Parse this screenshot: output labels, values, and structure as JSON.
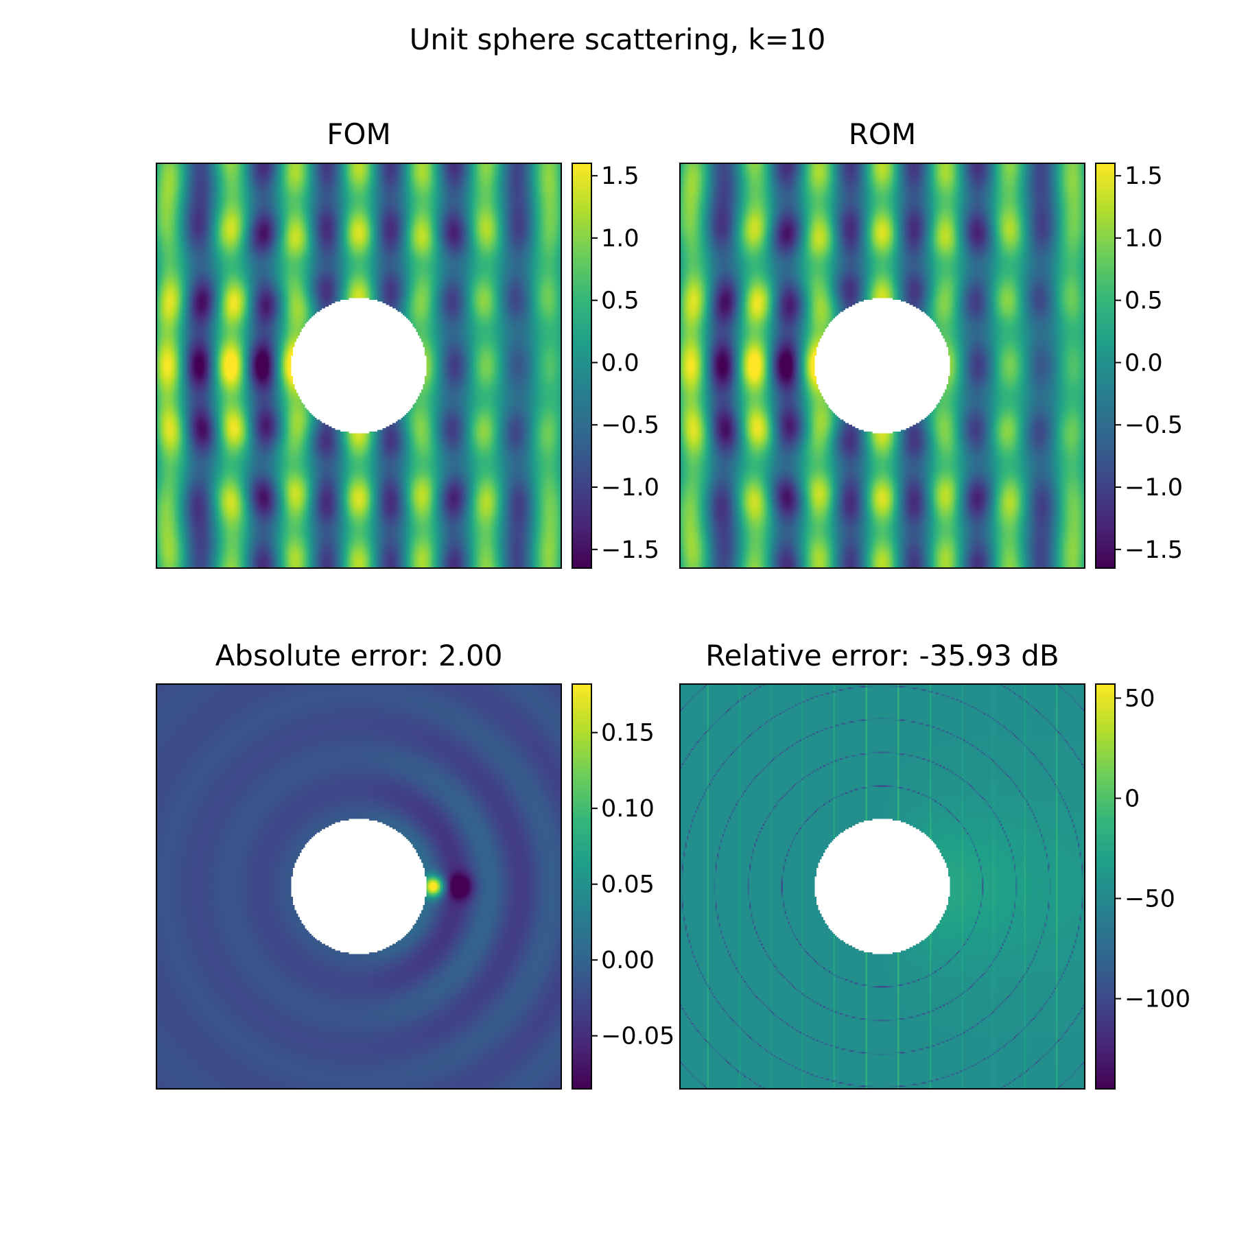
{
  "figure": {
    "title": "Unit sphere scattering, k=10"
  },
  "colormap": "viridis",
  "colormap_stops": [
    "#440154",
    "#482878",
    "#3e4989",
    "#31688e",
    "#26828e",
    "#1f9e89",
    "#35b779",
    "#6ece58",
    "#b5de2b",
    "#fde725"
  ],
  "chart_data": [
    {
      "type": "heatmap",
      "title": "FOM",
      "field": "scattered wave field, plane wave from left, circular obstacle at center",
      "colorbar": {
        "vmin": -1.65,
        "vmax": 1.6,
        "ticks": [
          1.5,
          1.0,
          0.5,
          0.0,
          -0.5,
          -1.0,
          -1.5
        ],
        "tick_labels": [
          "1.5",
          "1.0",
          "0.5",
          "0.0",
          "−0.5",
          "−1.0",
          "−1.5"
        ]
      },
      "xticks": [],
      "yticks": []
    },
    {
      "type": "heatmap",
      "title": "ROM",
      "field": "reduced order model of same scattered wave field",
      "colorbar": {
        "vmin": -1.65,
        "vmax": 1.6,
        "ticks": [
          1.5,
          1.0,
          0.5,
          0.0,
          -0.5,
          -1.0,
          -1.5
        ],
        "tick_labels": [
          "1.5",
          "1.0",
          "0.5",
          "0.0",
          "−0.5",
          "−1.0",
          "−1.5"
        ]
      },
      "xticks": [],
      "yticks": []
    },
    {
      "type": "heatmap",
      "title": "Absolute error: 2.00",
      "field": "difference FOM-ROM, concentrated in shadow region right of obstacle",
      "colorbar": {
        "vmin": -0.085,
        "vmax": 0.182,
        "ticks": [
          0.15,
          0.1,
          0.05,
          0.0,
          -0.05
        ],
        "tick_labels": [
          "0.15",
          "0.10",
          "0.05",
          "0.00",
          "−0.05"
        ]
      },
      "xticks": [],
      "yticks": []
    },
    {
      "type": "heatmap",
      "title": "Relative error: -35.93 dB",
      "field": "relative error in dB with nodal lines",
      "colorbar": {
        "vmin": -145,
        "vmax": 57,
        "ticks": [
          50,
          0,
          -50,
          -100
        ],
        "tick_labels": [
          "50",
          "0",
          "−50",
          "−100"
        ]
      },
      "xticks": [],
      "yticks": []
    }
  ]
}
